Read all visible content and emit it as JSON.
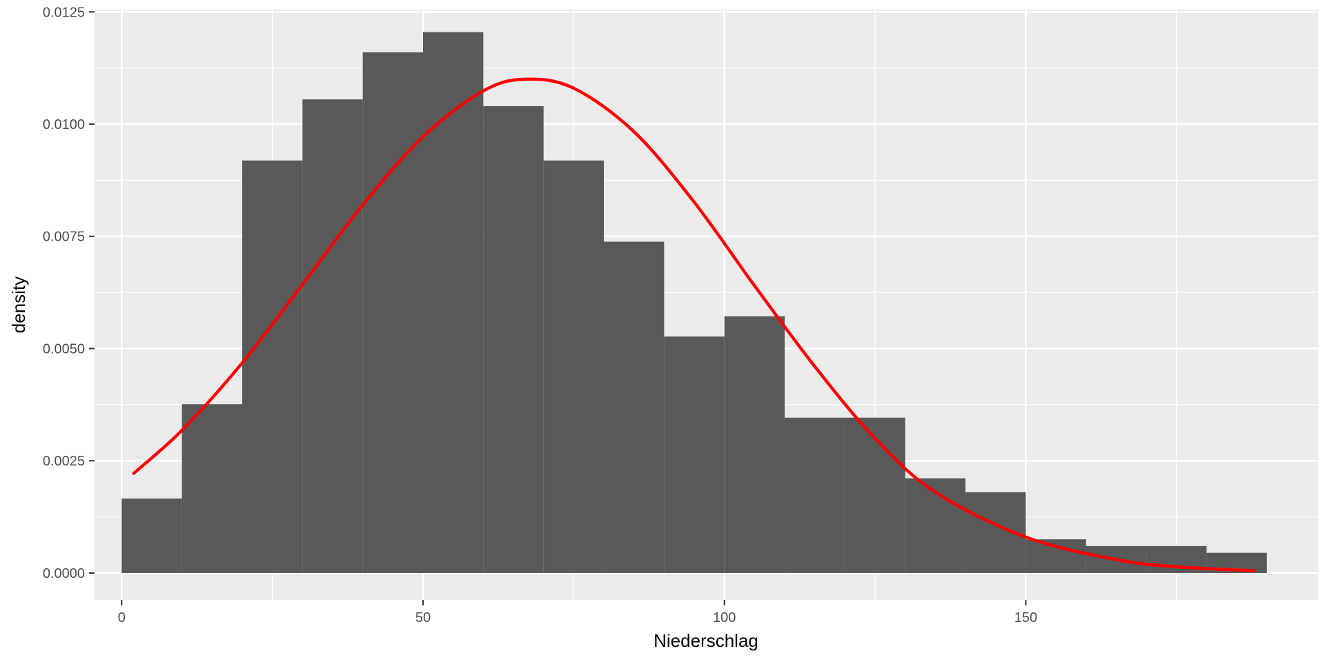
{
  "chart_data": {
    "type": "bar",
    "subtype": "histogram",
    "xlabel": "Niederschlag",
    "ylabel": "density",
    "xlim": [
      -4.5,
      198.5
    ],
    "ylim": [
      -0.0006,
      0.01255
    ],
    "x_ticks": [
      0,
      50,
      100,
      150
    ],
    "x_tick_labels": [
      "0",
      "50",
      "100",
      "150"
    ],
    "y_ticks": [
      0,
      0.0025,
      0.005,
      0.0075,
      0.01,
      0.0125
    ],
    "y_tick_labels": [
      "0.0000",
      "0.0025",
      "0.0050",
      "0.0075",
      "0.0100",
      "0.0125"
    ],
    "grid": true,
    "legend": "none",
    "bins": [
      {
        "x0": 0,
        "x1": 10,
        "density": 0.00166
      },
      {
        "x0": 10,
        "x1": 20,
        "density": 0.00376
      },
      {
        "x0": 20,
        "x1": 30,
        "density": 0.00919
      },
      {
        "x0": 30,
        "x1": 40,
        "density": 0.01055
      },
      {
        "x0": 40,
        "x1": 50,
        "density": 0.0116
      },
      {
        "x0": 50,
        "x1": 60,
        "density": 0.01205
      },
      {
        "x0": 60,
        "x1": 70,
        "density": 0.0104
      },
      {
        "x0": 70,
        "x1": 80,
        "density": 0.00919
      },
      {
        "x0": 80,
        "x1": 90,
        "density": 0.00738
      },
      {
        "x0": 90,
        "x1": 100,
        "density": 0.00527
      },
      {
        "x0": 100,
        "x1": 110,
        "density": 0.00572
      },
      {
        "x0": 110,
        "x1": 120,
        "density": 0.00346
      },
      {
        "x0": 120,
        "x1": 130,
        "density": 0.00346
      },
      {
        "x0": 130,
        "x1": 140,
        "density": 0.00211
      },
      {
        "x0": 140,
        "x1": 150,
        "density": 0.0018
      },
      {
        "x0": 150,
        "x1": 160,
        "density": 0.00075
      },
      {
        "x0": 160,
        "x1": 170,
        "density": 0.0006
      },
      {
        "x0": 170,
        "x1": 180,
        "density": 0.0006
      },
      {
        "x0": 180,
        "x1": 190,
        "density": 0.00045
      }
    ],
    "curve": {
      "x": [
        2,
        10,
        20,
        30,
        40,
        50,
        60,
        67,
        75,
        85,
        95,
        105,
        115,
        125,
        135,
        150,
        165,
        175,
        188
      ],
      "y": [
        0.00222,
        0.00318,
        0.00468,
        0.00643,
        0.0082,
        0.00972,
        0.01074,
        0.011,
        0.0108,
        0.00983,
        0.00826,
        0.0064,
        0.0046,
        0.003,
        0.0018,
        0.0008,
        0.0003,
        0.00014,
        5e-05
      ]
    },
    "colors": {
      "panel_background": "#ebebeb",
      "grid": "#ffffff",
      "bars": "#595959",
      "curve": "#ff0000"
    }
  }
}
